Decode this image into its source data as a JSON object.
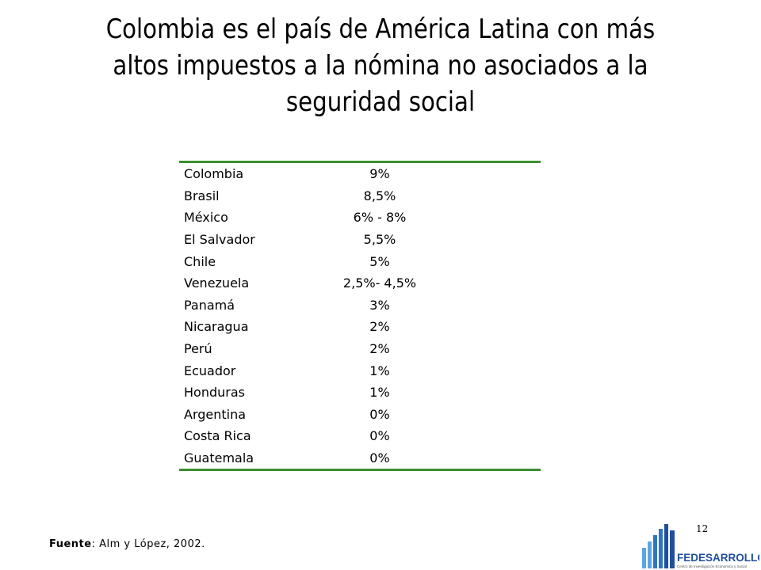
{
  "title": "Colombia es el país de América Latina con más altos impuestos a la nómina no asociados a la seguridad social",
  "table": {
    "rows": [
      {
        "country": "Colombia",
        "rate": "9%"
      },
      {
        "country": "Brasil",
        "rate": "8,5%"
      },
      {
        "country": "México",
        "rate": "6% - 8%"
      },
      {
        "country": "El Salvador",
        "rate": "5,5%"
      },
      {
        "country": "Chile",
        "rate": "5%"
      },
      {
        "country": "Venezuela",
        "rate": "2,5%- 4,5%"
      },
      {
        "country": "Panamá",
        "rate": "3%"
      },
      {
        "country": "Nicaragua",
        "rate": "2%"
      },
      {
        "country": "Perú",
        "rate": "2%"
      },
      {
        "country": "Ecuador",
        "rate": "1%"
      },
      {
        "country": "Honduras",
        "rate": "1%"
      },
      {
        "country": "Argentina",
        "rate": "0%"
      },
      {
        "country": "Costa Rica",
        "rate": "0%"
      },
      {
        "country": "Guatemala",
        "rate": "0%"
      }
    ]
  },
  "source": {
    "label": "Fuente",
    "text": ": Alm y López, 2002."
  },
  "page_number": "12",
  "logo": {
    "name": "FEDESARROLLO",
    "tagline": "Centro de Investigación Económica y Social",
    "colors": {
      "dark_blue": "#1f4e9c",
      "light_blue": "#5aa7e0"
    }
  },
  "colors": {
    "table_rule": "#3a8f2e",
    "text": "#000000"
  }
}
